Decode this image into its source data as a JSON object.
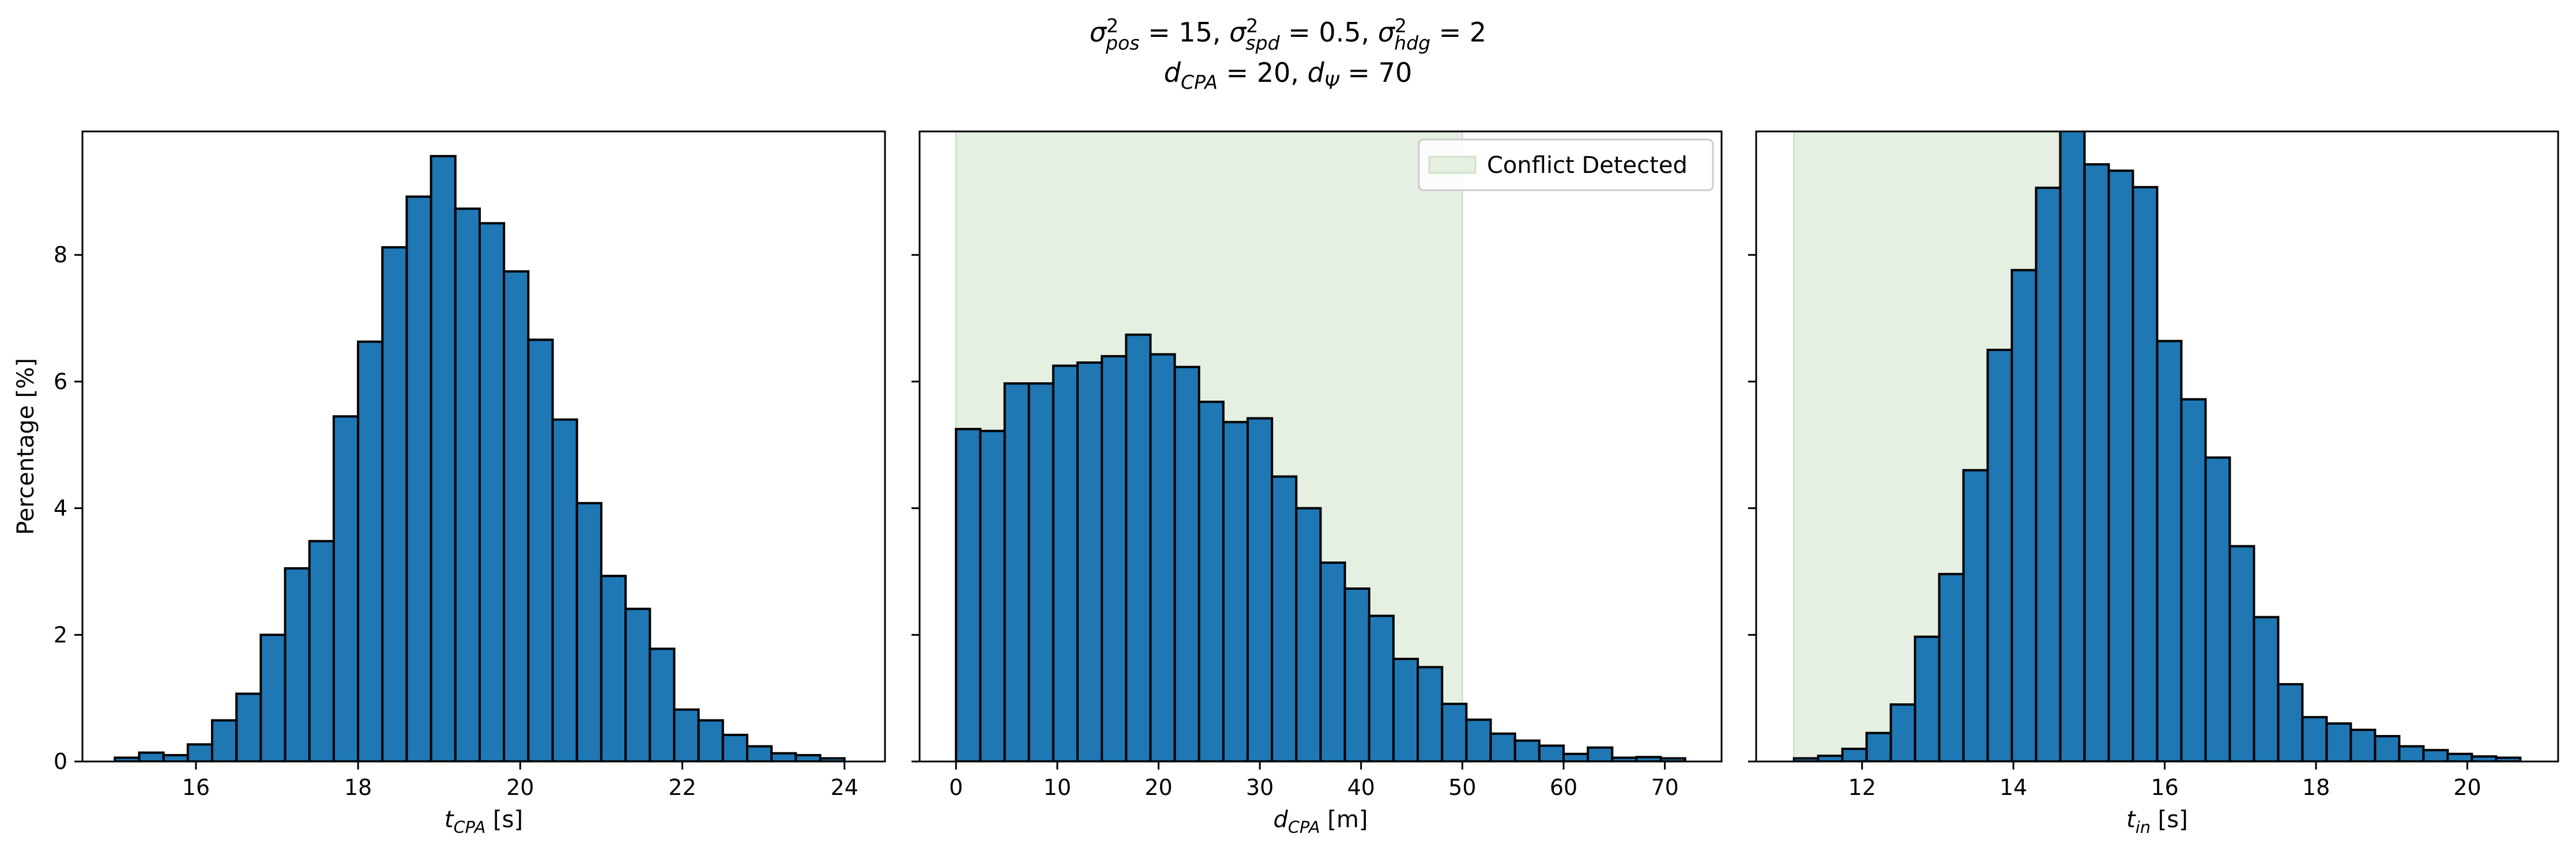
{
  "figure": {
    "title_line1_parts": [
      "σ",
      "2",
      "pos",
      " = 15, ",
      "σ",
      "2",
      "spd",
      " = 0.5, ",
      "σ",
      "2",
      "hdg",
      " = 2"
    ],
    "title_line2_parts": [
      "d",
      "CPA",
      " = 20, ",
      "d",
      "Ψ",
      " = 70"
    ]
  },
  "colors": {
    "bar": "#1f77b4",
    "edge": "#000000",
    "conflict_region": "#e5f0e2",
    "conflict_region_edge": "#cfe3cb"
  },
  "chart_data": [
    {
      "type": "bar",
      "panel": "t_cpa",
      "xlabel": {
        "main": "t",
        "sub": "CPA",
        "unit": " [s]"
      },
      "ylabel": "Percentage [%]",
      "xlim": [
        14.6,
        24.5
      ],
      "ylim": [
        0,
        9.95
      ],
      "xticks": [
        16,
        18,
        20,
        22,
        24
      ],
      "yticks": [
        0,
        2,
        4,
        6,
        8
      ],
      "bin_start": 15.0,
      "bin_width": 0.3,
      "values": [
        0.06,
        0.14,
        0.1,
        0.27,
        0.65,
        1.07,
        2.0,
        3.05,
        3.48,
        5.45,
        6.63,
        8.12,
        8.92,
        9.56,
        8.73,
        8.5,
        7.74,
        6.66,
        5.4,
        4.08,
        2.93,
        2.41,
        1.78,
        0.82,
        0.65,
        0.42,
        0.24,
        0.13,
        0.1,
        0.05
      ]
    },
    {
      "type": "bar",
      "panel": "d_cpa",
      "xlabel": {
        "main": "d",
        "sub": "CPA",
        "unit": " [m]"
      },
      "xlim": [
        -3.6,
        75.6
      ],
      "ylim": [
        0,
        9.95
      ],
      "xticks": [
        0,
        10,
        20,
        30,
        40,
        50,
        60,
        70
      ],
      "yticks": [
        0,
        2,
        4,
        6,
        8
      ],
      "bin_start": 0.0,
      "bin_width": 2.4,
      "values": [
        5.25,
        5.22,
        5.97,
        5.97,
        6.25,
        6.3,
        6.4,
        6.74,
        6.43,
        6.23,
        5.68,
        5.36,
        5.42,
        4.5,
        4.0,
        3.14,
        2.73,
        2.3,
        1.62,
        1.49,
        0.91,
        0.66,
        0.44,
        0.33,
        0.25,
        0.12,
        0.22,
        0.06,
        0.07,
        0.05
      ],
      "shaded_region": {
        "x": [
          0,
          50
        ]
      },
      "legend": {
        "label": "Conflict Detected",
        "position": "upper right"
      }
    },
    {
      "type": "bar",
      "panel": "t_in",
      "xlabel": {
        "main": "t",
        "sub": "in",
        "unit": " [s]"
      },
      "xlim": [
        10.6,
        21.2
      ],
      "ylim": [
        0,
        9.95
      ],
      "xticks": [
        12,
        14,
        16,
        18,
        20
      ],
      "yticks": [
        0,
        2,
        4,
        6,
        8
      ],
      "bin_start": 11.1,
      "bin_width": 0.32,
      "values": [
        0.05,
        0.09,
        0.2,
        0.45,
        0.9,
        1.97,
        2.96,
        4.6,
        6.5,
        7.76,
        9.06,
        10.0,
        9.43,
        9.33,
        9.07,
        6.64,
        5.72,
        4.8,
        3.4,
        2.28,
        1.22,
        0.7,
        0.6,
        0.5,
        0.4,
        0.24,
        0.18,
        0.12,
        0.08,
        0.06
      ],
      "shaded_region": {
        "x": [
          11.1,
          14.6
        ]
      }
    }
  ]
}
